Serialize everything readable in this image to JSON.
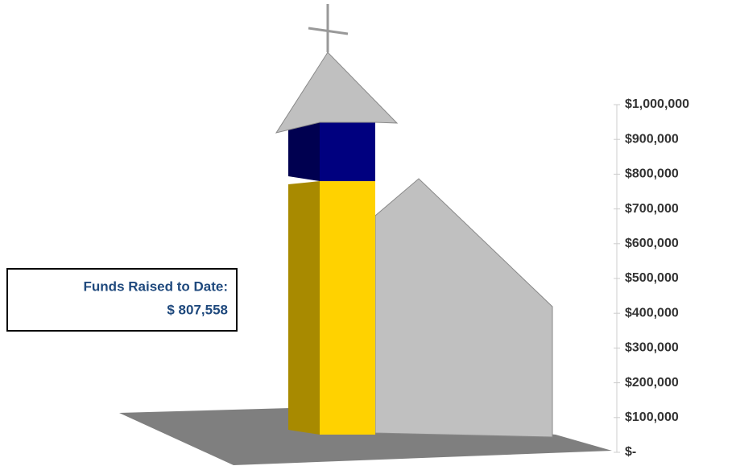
{
  "chart_data": {
    "type": "bar",
    "annotation": "Funds Raised to Date:",
    "categories": [
      null
    ],
    "series": [
      {
        "color": "#ffd200",
        "side_color": "#a88a00",
        "values": [
          807558
        ],
        "value_labels": [
          "$ 807,558"
        ]
      },
      {
        "color": "#00007f",
        "side_color": "#000050",
        "values": [
          192442
        ]
      }
    ],
    "ylim": [
      0,
      1000000
    ],
    "yticks": [
      {
        "value": 0,
        "label": "$-"
      },
      {
        "value": 100000,
        "label": "$100,000"
      },
      {
        "value": 200000,
        "label": "$200,000"
      },
      {
        "value": 300000,
        "label": "$300,000"
      },
      {
        "value": 400000,
        "label": "$400,000"
      },
      {
        "value": 500000,
        "label": "$500,000"
      },
      {
        "value": 600000,
        "label": "$600,000"
      },
      {
        "value": 700000,
        "label": "$700,000"
      },
      {
        "value": 800000,
        "label": "$800,000"
      },
      {
        "value": 900000,
        "label": "$900,000"
      },
      {
        "value": 1000000,
        "label": "$1,000,000"
      }
    ]
  }
}
